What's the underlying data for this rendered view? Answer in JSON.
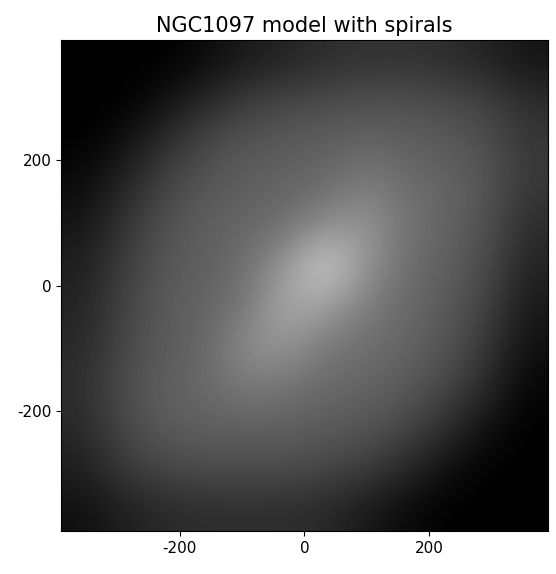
{
  "chart_data": {
    "type": "image",
    "title": "NGC1097 model with spirals",
    "color": "gray",
    "xlim": [
      -390,
      390
    ],
    "ylim": [
      -390,
      390
    ],
    "xticks": [
      -200,
      0,
      200
    ],
    "yticks": [
      -200,
      0,
      200
    ],
    "color_range": [
      0,
      255
    ],
    "cells": [
      [
        0,
        0,
        0,
        10,
        25,
        35,
        45,
        50,
        50,
        45,
        35,
        20
      ],
      [
        0,
        0,
        15,
        40,
        60,
        70,
        75,
        80,
        80,
        75,
        65,
        45
      ],
      [
        0,
        15,
        45,
        70,
        85,
        90,
        95,
        100,
        95,
        90,
        80,
        55
      ],
      [
        10,
        35,
        65,
        85,
        95,
        100,
        105,
        125,
        110,
        100,
        85,
        55
      ],
      [
        20,
        50,
        80,
        95,
        100,
        110,
        140,
        150,
        115,
        100,
        80,
        45
      ],
      [
        30,
        60,
        85,
        95,
        110,
        150,
        210,
        150,
        110,
        95,
        75,
        35
      ],
      [
        35,
        65,
        90,
        100,
        115,
        170,
        160,
        125,
        105,
        90,
        65,
        25
      ],
      [
        40,
        70,
        90,
        100,
        140,
        150,
        120,
        110,
        100,
        85,
        55,
        15
      ],
      [
        45,
        75,
        95,
        105,
        120,
        115,
        105,
        100,
        90,
        70,
        40,
        5
      ],
      [
        40,
        70,
        90,
        95,
        95,
        95,
        90,
        85,
        70,
        45,
        15,
        0
      ],
      [
        30,
        55,
        70,
        75,
        75,
        75,
        70,
        60,
        40,
        15,
        0,
        0
      ],
      [
        15,
        30,
        40,
        45,
        45,
        45,
        40,
        25,
        10,
        0,
        0,
        0
      ]
    ]
  }
}
